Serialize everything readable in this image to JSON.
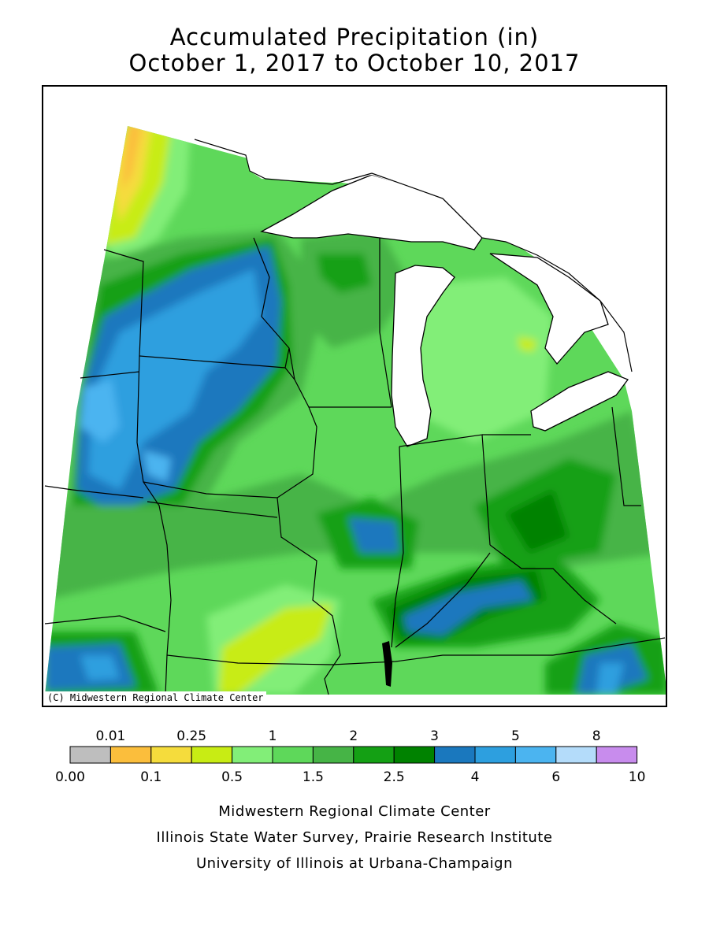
{
  "title_line1": "Accumulated Precipitation (in)",
  "title_line2": "October 1, 2017 to October 10, 2017",
  "copyright": "(C) Midwestern Regional Climate Center",
  "legend": {
    "colors": [
      "#bebebe",
      "#fbbe3c",
      "#f5dc3c",
      "#c8ec14",
      "#82ee78",
      "#5ed85a",
      "#46b446",
      "#14a014",
      "#008200",
      "#1a78be",
      "#2d9fdf",
      "#4bb4f0",
      "#b4dcfa",
      "#c88ced"
    ],
    "top_labels": [
      "0.01",
      "0.25",
      "1",
      "2",
      "3",
      "5",
      "8"
    ],
    "bottom_labels": [
      "0.00",
      "0.1",
      "0.5",
      "1.5",
      "2.5",
      "4",
      "6",
      "10"
    ]
  },
  "credits": [
    "Midwestern Regional Climate Center",
    "Illinois State Water Survey, Prairie Research Institute",
    "University of Illinois at Urbana-Champaign"
  ]
}
